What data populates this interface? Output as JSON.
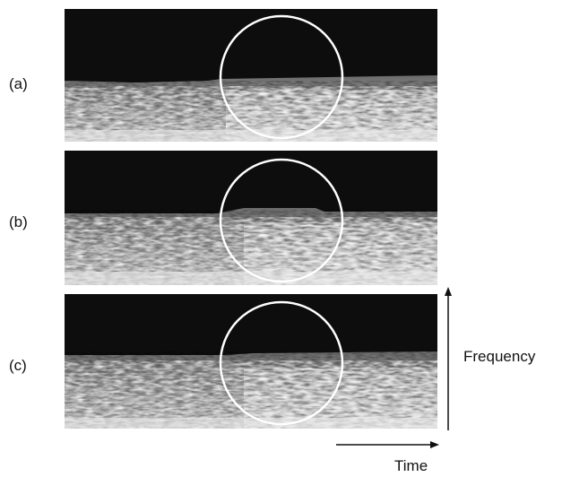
{
  "panels": [
    {
      "label": "(a)"
    },
    {
      "label": "(b)"
    },
    {
      "label": "(c)"
    }
  ],
  "axes": {
    "vertical": "Frequency",
    "horizontal": "Time"
  }
}
